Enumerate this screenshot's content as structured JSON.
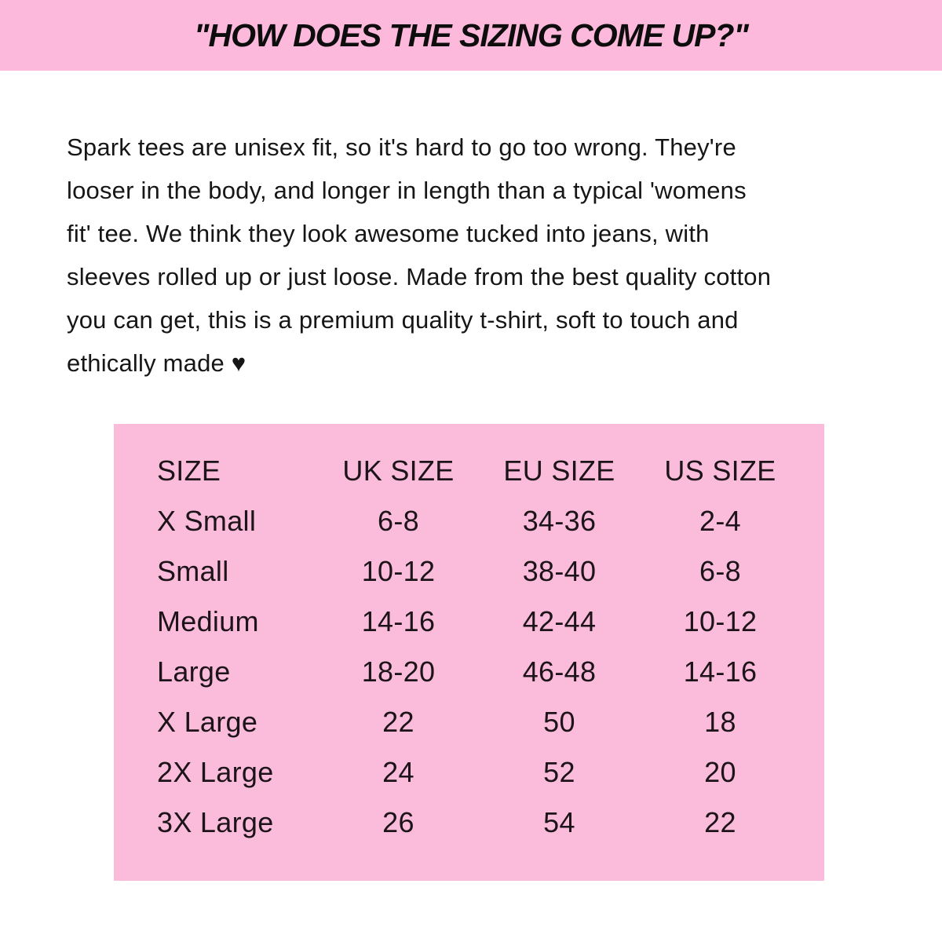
{
  "banner": {
    "title": "\"HOW DOES THE SIZING COME UP?\"",
    "bg_color": "#FCB9DB",
    "text_color": "#0d0d0d"
  },
  "description": {
    "lines": [
      "Spark tees are unisex fit, so it's hard to go too wrong. They're",
      "looser in the body, and longer in length than a typical 'womens",
      "fit' tee. We think they look awesome tucked into jeans, with",
      "sleeves rolled up or just loose. Made from the best quality cotton",
      "you can get, this is a premium quality t-shirt, soft to touch and",
      "ethically made ♥"
    ],
    "heart_icon": "♥"
  },
  "size_table": {
    "bg_color": "#FBBCDC",
    "headers": [
      "SIZE",
      "UK SIZE",
      "EU SIZE",
      "US SIZE"
    ],
    "rows": [
      {
        "size": "X Small",
        "uk": "6-8",
        "eu": "34-36",
        "us": "2-4"
      },
      {
        "size": "Small",
        "uk": "10-12",
        "eu": "38-40",
        "us": "6-8"
      },
      {
        "size": "Medium",
        "uk": "14-16",
        "eu": "42-44",
        "us": "10-12"
      },
      {
        "size": "Large",
        "uk": "18-20",
        "eu": "46-48",
        "us": "14-16"
      },
      {
        "size": "X Large",
        "uk": "22",
        "eu": "50",
        "us": "18"
      },
      {
        "size": "2X Large",
        "uk": "24",
        "eu": "52",
        "us": "20"
      },
      {
        "size": "3X Large",
        "uk": "26",
        "eu": "54",
        "us": "22"
      }
    ]
  }
}
